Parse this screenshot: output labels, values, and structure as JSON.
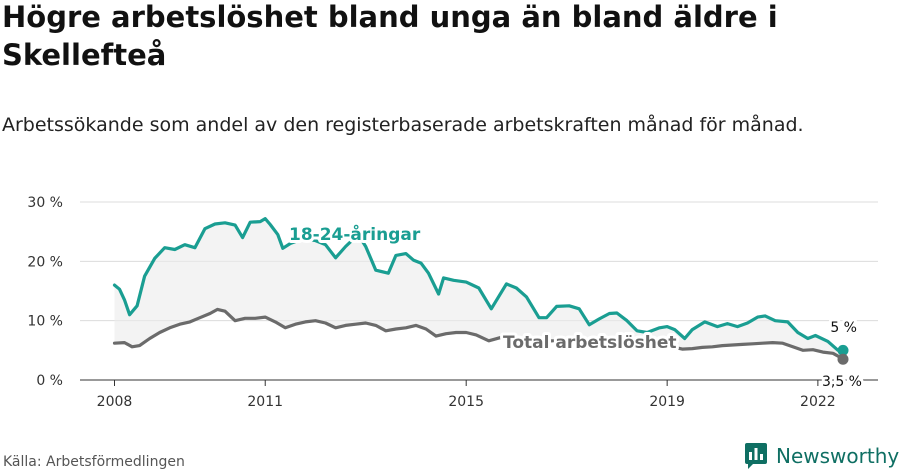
{
  "title": "Högre arbetslöshet bland unga än bland äldre i Skellefteå",
  "subtitle": "Arbetssökande som andel av den registerbaserade arbetskraften månad för månad.",
  "source": "Källa: Arbetsförmedlingen",
  "brand": {
    "name": "Newsworthy",
    "logo_icon": "bar-chart-logo-icon",
    "color": "#0f6f63"
  },
  "chart_data": {
    "type": "line",
    "xlim": [
      2007.9,
      2022.5
    ],
    "ylim": [
      0,
      30
    ],
    "x_ticks": [
      2008,
      2011,
      2015,
      2019,
      2022
    ],
    "x_tick_labels": [
      "2008",
      "2011",
      "2015",
      "2019",
      "2022"
    ],
    "y_ticks": [
      0,
      10,
      20,
      30
    ],
    "y_tick_labels": [
      "0 %",
      "10 %",
      "20 %",
      "30 %"
    ],
    "grid": true,
    "legend": "direct labels",
    "series": [
      {
        "name": "18-24-åringar",
        "color": "#1a9e92",
        "end_label": "5 %",
        "points": [
          [
            2008.0,
            16.0
          ],
          [
            2008.1,
            15.3
          ],
          [
            2008.2,
            13.5
          ],
          [
            2008.3,
            11.0
          ],
          [
            2008.45,
            12.5
          ],
          [
            2008.6,
            17.5
          ],
          [
            2008.8,
            20.5
          ],
          [
            2009.0,
            22.3
          ],
          [
            2009.2,
            22.0
          ],
          [
            2009.4,
            22.8
          ],
          [
            2009.6,
            22.3
          ],
          [
            2009.8,
            25.5
          ],
          [
            2010.0,
            26.3
          ],
          [
            2010.2,
            26.5
          ],
          [
            2010.4,
            26.1
          ],
          [
            2010.55,
            24.0
          ],
          [
            2010.7,
            26.6
          ],
          [
            2010.9,
            26.7
          ],
          [
            2011.0,
            27.2
          ],
          [
            2011.1,
            26.2
          ],
          [
            2011.25,
            24.5
          ],
          [
            2011.35,
            22.2
          ],
          [
            2011.5,
            23.0
          ],
          [
            2011.75,
            23.8
          ],
          [
            2012.0,
            23.5
          ],
          [
            2012.2,
            22.8
          ],
          [
            2012.4,
            20.6
          ],
          [
            2012.6,
            22.5
          ],
          [
            2012.85,
            24.5
          ],
          [
            2013.0,
            22.5
          ],
          [
            2013.2,
            18.5
          ],
          [
            2013.45,
            18.0
          ],
          [
            2013.6,
            21.0
          ],
          [
            2013.8,
            21.3
          ],
          [
            2013.95,
            20.2
          ],
          [
            2014.1,
            19.7
          ],
          [
            2014.25,
            18.0
          ],
          [
            2014.45,
            14.5
          ],
          [
            2014.55,
            17.2
          ],
          [
            2014.75,
            16.8
          ],
          [
            2015.0,
            16.5
          ],
          [
            2015.25,
            15.5
          ],
          [
            2015.5,
            12.0
          ],
          [
            2015.8,
            16.2
          ],
          [
            2016.0,
            15.5
          ],
          [
            2016.2,
            14.0
          ],
          [
            2016.45,
            10.5
          ],
          [
            2016.6,
            10.5
          ],
          [
            2016.8,
            12.4
          ],
          [
            2017.05,
            12.5
          ],
          [
            2017.25,
            12.0
          ],
          [
            2017.45,
            9.3
          ],
          [
            2017.65,
            10.3
          ],
          [
            2017.85,
            11.2
          ],
          [
            2018.0,
            11.3
          ],
          [
            2018.2,
            10.0
          ],
          [
            2018.4,
            8.3
          ],
          [
            2018.6,
            8.0
          ],
          [
            2018.85,
            8.8
          ],
          [
            2019.0,
            9.0
          ],
          [
            2019.15,
            8.5
          ],
          [
            2019.35,
            7.0
          ],
          [
            2019.5,
            8.5
          ],
          [
            2019.75,
            9.8
          ],
          [
            2020.0,
            9.0
          ],
          [
            2020.2,
            9.5
          ],
          [
            2020.4,
            9.0
          ],
          [
            2020.6,
            9.6
          ],
          [
            2020.8,
            10.6
          ],
          [
            2020.95,
            10.8
          ],
          [
            2021.15,
            10.0
          ],
          [
            2021.4,
            9.8
          ],
          [
            2021.6,
            8.0
          ],
          [
            2021.8,
            7.0
          ],
          [
            2021.95,
            7.5
          ],
          [
            2022.2,
            6.5
          ],
          [
            2022.4,
            5.0
          ],
          [
            2022.5,
            5.0
          ]
        ]
      },
      {
        "name": "Total arbetslöshet",
        "color": "#6b6b6b",
        "end_label": "3,5 %",
        "points": [
          [
            2008.0,
            6.2
          ],
          [
            2008.2,
            6.3
          ],
          [
            2008.35,
            5.6
          ],
          [
            2008.5,
            5.8
          ],
          [
            2008.7,
            7.0
          ],
          [
            2008.9,
            8.0
          ],
          [
            2009.1,
            8.8
          ],
          [
            2009.3,
            9.4
          ],
          [
            2009.5,
            9.8
          ],
          [
            2009.7,
            10.5
          ],
          [
            2009.9,
            11.2
          ],
          [
            2010.05,
            11.9
          ],
          [
            2010.2,
            11.6
          ],
          [
            2010.4,
            10.0
          ],
          [
            2010.6,
            10.4
          ],
          [
            2010.8,
            10.4
          ],
          [
            2011.0,
            10.6
          ],
          [
            2011.2,
            9.8
          ],
          [
            2011.4,
            8.8
          ],
          [
            2011.6,
            9.4
          ],
          [
            2011.8,
            9.8
          ],
          [
            2012.0,
            10.0
          ],
          [
            2012.2,
            9.6
          ],
          [
            2012.4,
            8.8
          ],
          [
            2012.6,
            9.2
          ],
          [
            2012.8,
            9.4
          ],
          [
            2013.0,
            9.6
          ],
          [
            2013.2,
            9.2
          ],
          [
            2013.4,
            8.3
          ],
          [
            2013.6,
            8.6
          ],
          [
            2013.8,
            8.8
          ],
          [
            2014.0,
            9.2
          ],
          [
            2014.2,
            8.6
          ],
          [
            2014.4,
            7.4
          ],
          [
            2014.6,
            7.8
          ],
          [
            2014.8,
            8.0
          ],
          [
            2015.0,
            8.0
          ],
          [
            2015.2,
            7.6
          ],
          [
            2015.45,
            6.6
          ],
          [
            2015.7,
            7.2
          ],
          [
            2015.9,
            7.2
          ],
          [
            2016.1,
            7.0
          ],
          [
            2016.3,
            6.2
          ],
          [
            2016.5,
            6.3
          ],
          [
            2016.7,
            6.6
          ],
          [
            2016.9,
            6.6
          ],
          [
            2017.1,
            6.4
          ],
          [
            2017.3,
            5.8
          ],
          [
            2017.5,
            5.8
          ],
          [
            2017.7,
            6.0
          ],
          [
            2017.9,
            6.2
          ],
          [
            2018.1,
            6.0
          ],
          [
            2018.3,
            5.4
          ],
          [
            2018.5,
            5.4
          ],
          [
            2018.7,
            5.6
          ],
          [
            2018.9,
            5.8
          ],
          [
            2019.1,
            5.6
          ],
          [
            2019.3,
            5.2
          ],
          [
            2019.5,
            5.3
          ],
          [
            2019.7,
            5.5
          ],
          [
            2019.9,
            5.6
          ],
          [
            2020.1,
            5.8
          ],
          [
            2020.3,
            5.9
          ],
          [
            2020.5,
            6.0
          ],
          [
            2020.7,
            6.1
          ],
          [
            2020.9,
            6.2
          ],
          [
            2021.1,
            6.3
          ],
          [
            2021.3,
            6.2
          ],
          [
            2021.5,
            5.6
          ],
          [
            2021.7,
            5.0
          ],
          [
            2021.9,
            5.1
          ],
          [
            2022.1,
            4.7
          ],
          [
            2022.3,
            4.5
          ],
          [
            2022.45,
            3.8
          ],
          [
            2022.5,
            3.5
          ]
        ]
      }
    ]
  }
}
